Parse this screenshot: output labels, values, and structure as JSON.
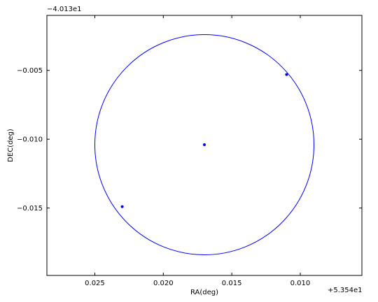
{
  "chart_data": {
    "type": "scatter",
    "title": "",
    "xlabel": "RA(deg)",
    "ylabel": "DEC(deg)",
    "x_offset_label": "+5.354e1",
    "y_offset_label": "−4.013e1",
    "x_inverted": true,
    "xlim": [
      0.0285,
      0.0055
    ],
    "ylim": [
      -0.0199,
      -0.001
    ],
    "xticks": [
      0.025,
      0.02,
      0.015,
      0.01
    ],
    "xtick_labels": [
      "0.025",
      "0.020",
      "0.015",
      "0.010"
    ],
    "yticks": [
      -0.005,
      -0.01,
      -0.015
    ],
    "ytick_labels": [
      "−0.005",
      "−0.010",
      "−0.015"
    ],
    "grid": false,
    "series": [
      {
        "points": [
          {
            "x": 0.017,
            "y": -0.0104
          },
          {
            "x": 0.023,
            "y": -0.0149
          },
          {
            "x": 0.011,
            "y": -0.0053
          }
        ],
        "color": "#0000ff"
      }
    ],
    "circle": {
      "center_x": 0.017,
      "center_y": -0.0104,
      "radius_x": 0.008,
      "radius_y": 0.008,
      "color": "#0000ff"
    }
  }
}
